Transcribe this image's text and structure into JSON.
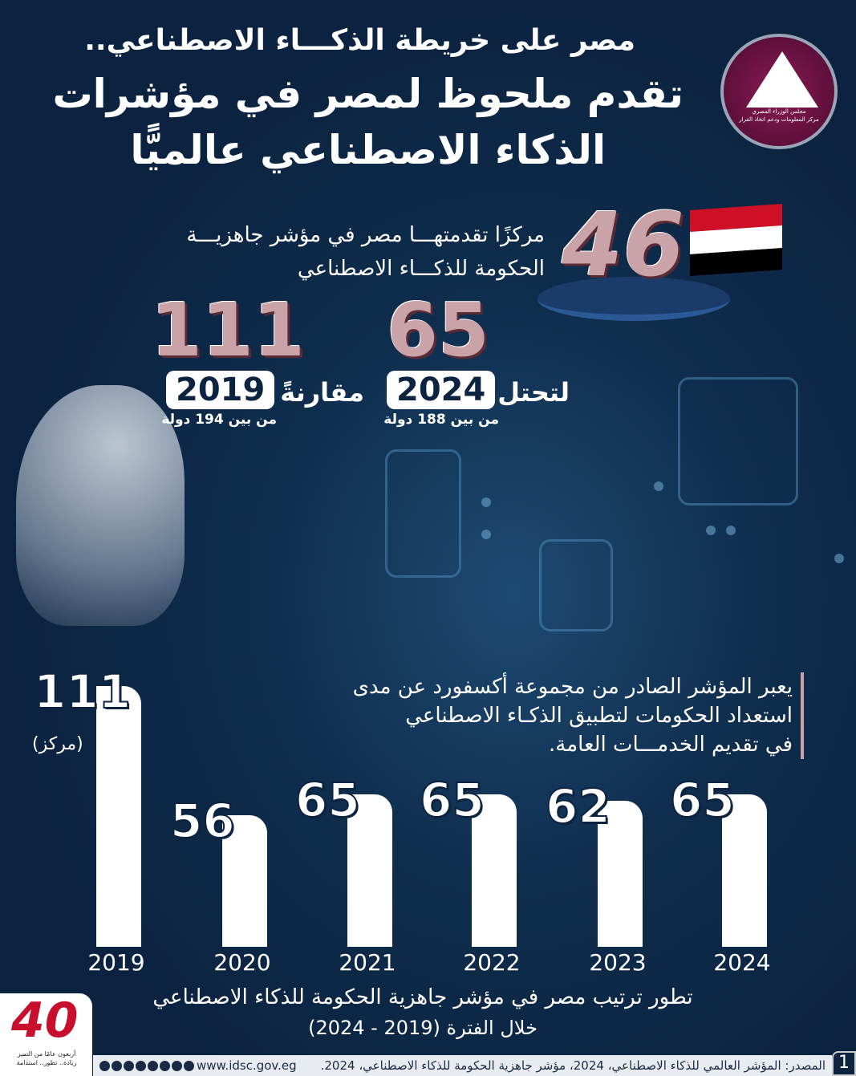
{
  "header": {
    "subtitle": "مصر على خريطة الذكـــاء الاصطناعي..",
    "title_line1": "تقدم ملحوظ لمصر في مؤشرات",
    "title_line2": "الذكاء الاصطناعي عالميًّا"
  },
  "logo_right": {
    "line1": "مجلس الوزراء المصري",
    "line2": "مركز المعلومات ودعم اتخاذ القرار"
  },
  "highlight": {
    "value": "46",
    "text_line1": "مركزًا تقدمتهـــا مصر في مؤشر جاهزيـــة",
    "text_line2": "الحكومة للذكـــاء الاصطناعي"
  },
  "compare": {
    "rank_2024": "65",
    "year_2024": "2024",
    "word_2024": "لتحتل",
    "note_2024": "من بين 188 دولة",
    "rank_2019": "111",
    "year_2019": "2019",
    "word_2019": "مقارنةً",
    "note_2019": "من بين 194 دولة"
  },
  "description": {
    "line1": "يعبر المؤشر الصادر من مجموعة أكسفورد عن مدى",
    "line2": "استعداد الحكومات لتطبيق الذكـاء الاصطناعي",
    "line3": "في تقديم الخدمـــات العامة."
  },
  "chart_data": {
    "type": "bar",
    "categories": [
      "2019",
      "2020",
      "2021",
      "2022",
      "2023",
      "2024"
    ],
    "values": [
      111,
      56,
      65,
      65,
      62,
      65
    ],
    "value_labels": [
      "111",
      "56",
      "65",
      "65",
      "62",
      "65"
    ],
    "unit_label": "(مركز)",
    "title": "تطور ترتيب مصر في مؤشر جاهزية الحكومة للذكاء الاصطناعي",
    "subtitle": "خلال الفترة (2019 - 2024)",
    "bar_color": "#ffffff"
  },
  "footer": {
    "source": "المصدر: المؤشر العالمي للذكاء الاصطناعي، 2024، مؤشر جاهزية الحكومة للذكاء الاصطناعي، 2024.",
    "website": "www.idsc.gov.eg",
    "page": "1",
    "social_icons": [
      "facebook-icon",
      "x-icon",
      "instagram-icon",
      "youtube-icon",
      "linkedin-icon",
      "telegram-icon",
      "tiktok-icon",
      "whatsapp-icon"
    ]
  },
  "logo_left": {
    "number": "40",
    "line1": "أربعون عامًا من التميز",
    "line2": "ريادة.. تطور.. استدامة"
  },
  "colors": {
    "background": "#0c2440",
    "accent": "#c9a3a8",
    "flag_red": "#ce1126",
    "flag_black": "#000000"
  }
}
